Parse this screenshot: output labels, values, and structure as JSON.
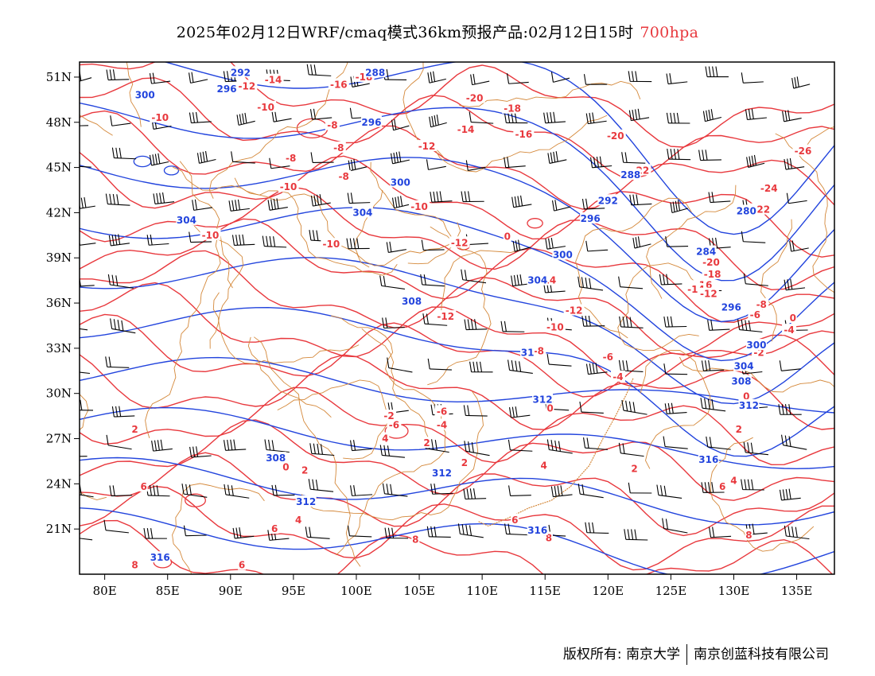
{
  "header": {
    "title": "2025年02月12日WRF/cmaq模式36km预报产品:02月12日15时",
    "level": "700hpa"
  },
  "map": {
    "lon_range": [
      78,
      138
    ],
    "lat_range": [
      18,
      52
    ],
    "lon_ticks": [
      "80E",
      "85E",
      "90E",
      "95E",
      "100E",
      "105E",
      "110E",
      "115E",
      "120E",
      "125E",
      "130E",
      "135E"
    ],
    "lat_ticks": [
      "21N",
      "24N",
      "27N",
      "30N",
      "33N",
      "36N",
      "39N",
      "42N",
      "45N",
      "48N",
      "51N"
    ],
    "colors": {
      "height": "#2244dd",
      "temperature": "#e8383d",
      "border": "#d4883a",
      "wind": "#000000"
    },
    "height_labels": [
      {
        "text": "292",
        "lon": 90.8,
        "lat": 51.3
      },
      {
        "text": "288",
        "lon": 101.5,
        "lat": 51.3
      },
      {
        "text": "300",
        "lon": 83.2,
        "lat": 49.8
      },
      {
        "text": "296",
        "lon": 89.7,
        "lat": 50.2
      },
      {
        "text": "296",
        "lon": 101.2,
        "lat": 48.0
      },
      {
        "text": "300",
        "lon": 103.5,
        "lat": 44.0
      },
      {
        "text": "304",
        "lon": 86.5,
        "lat": 41.5
      },
      {
        "text": "304",
        "lon": 100.5,
        "lat": 42.0
      },
      {
        "text": "308",
        "lon": 104.4,
        "lat": 36.1
      },
      {
        "text": "300",
        "lon": 116.4,
        "lat": 39.2
      },
      {
        "text": "304",
        "lon": 114.4,
        "lat": 37.5
      },
      {
        "text": "296",
        "lon": 118.6,
        "lat": 41.6
      },
      {
        "text": "292",
        "lon": 120.0,
        "lat": 42.8
      },
      {
        "text": "288",
        "lon": 121.8,
        "lat": 44.5
      },
      {
        "text": "280",
        "lon": 131.0,
        "lat": 42.1
      },
      {
        "text": "284",
        "lon": 127.8,
        "lat": 39.4
      },
      {
        "text": "296",
        "lon": 129.8,
        "lat": 35.7
      },
      {
        "text": "300",
        "lon": 131.8,
        "lat": 33.2
      },
      {
        "text": "304",
        "lon": 130.8,
        "lat": 31.8
      },
      {
        "text": "308",
        "lon": 130.6,
        "lat": 30.8
      },
      {
        "text": "312",
        "lon": 131.2,
        "lat": 29.2
      },
      {
        "text": "312",
        "lon": 114.8,
        "lat": 29.6
      },
      {
        "text": "316",
        "lon": 128.0,
        "lat": 25.6
      },
      {
        "text": "316",
        "lon": 114.4,
        "lat": 20.9
      },
      {
        "text": "308",
        "lon": 93.6,
        "lat": 25.7
      },
      {
        "text": "312",
        "lon": 96.0,
        "lat": 22.8
      },
      {
        "text": "312",
        "lon": 106.8,
        "lat": 24.7
      },
      {
        "text": "316",
        "lon": 84.4,
        "lat": 19.1
      },
      {
        "text": "31",
        "lon": 113.6,
        "lat": 32.7
      }
    ],
    "temp_labels": [
      {
        "text": "-12",
        "lon": 91.3,
        "lat": 50.4
      },
      {
        "text": "-14",
        "lon": 93.4,
        "lat": 50.8
      },
      {
        "text": "-16",
        "lon": 98.6,
        "lat": 50.5
      },
      {
        "text": "-18",
        "lon": 100.6,
        "lat": 51.0
      },
      {
        "text": "-10",
        "lon": 92.8,
        "lat": 49.0
      },
      {
        "text": "-10",
        "lon": 84.4,
        "lat": 48.3
      },
      {
        "text": "-20",
        "lon": 109.4,
        "lat": 49.6
      },
      {
        "text": "-18",
        "lon": 112.4,
        "lat": 48.9
      },
      {
        "text": "-14",
        "lon": 108.7,
        "lat": 47.5
      },
      {
        "text": "-16",
        "lon": 113.3,
        "lat": 47.2
      },
      {
        "text": "-8",
        "lon": 98.1,
        "lat": 47.8
      },
      {
        "text": "-8",
        "lon": 98.6,
        "lat": 46.3
      },
      {
        "text": "-12",
        "lon": 105.6,
        "lat": 46.4
      },
      {
        "text": "-20",
        "lon": 120.6,
        "lat": 47.1
      },
      {
        "text": "-22",
        "lon": 122.6,
        "lat": 44.8
      },
      {
        "text": "-26",
        "lon": 135.5,
        "lat": 46.1
      },
      {
        "text": "-8",
        "lon": 94.8,
        "lat": 45.6
      },
      {
        "text": "-8",
        "lon": 99.0,
        "lat": 44.4
      },
      {
        "text": "-10",
        "lon": 94.6,
        "lat": 43.7
      },
      {
        "text": "-10",
        "lon": 105.0,
        "lat": 42.4
      },
      {
        "text": "-10",
        "lon": 88.4,
        "lat": 40.5
      },
      {
        "text": "-10",
        "lon": 98.0,
        "lat": 39.9
      },
      {
        "text": "-12",
        "lon": 108.2,
        "lat": 40.0
      },
      {
        "text": "-24",
        "lon": 132.8,
        "lat": 43.6
      },
      {
        "text": "-22",
        "lon": 132.2,
        "lat": 42.2
      },
      {
        "text": "-20",
        "lon": 128.2,
        "lat": 38.7
      },
      {
        "text": "-18",
        "lon": 128.3,
        "lat": 37.9
      },
      {
        "text": "-16",
        "lon": 127.6,
        "lat": 37.2
      },
      {
        "text": "-14",
        "lon": 127.0,
        "lat": 36.9
      },
      {
        "text": "-12",
        "lon": 128.0,
        "lat": 36.6
      },
      {
        "text": "-8",
        "lon": 132.2,
        "lat": 35.9
      },
      {
        "text": "-6",
        "lon": 131.7,
        "lat": 35.2
      },
      {
        "text": "-14",
        "lon": 115.2,
        "lat": 37.5
      },
      {
        "text": "-12",
        "lon": 117.3,
        "lat": 35.5
      },
      {
        "text": "-12",
        "lon": 107.1,
        "lat": 35.1
      },
      {
        "text": "-10",
        "lon": 115.8,
        "lat": 34.4
      },
      {
        "text": "-8",
        "lon": 114.5,
        "lat": 32.8
      },
      {
        "text": "-6",
        "lon": 120.0,
        "lat": 32.4
      },
      {
        "text": "-4",
        "lon": 120.8,
        "lat": 31.1
      },
      {
        "text": "-4",
        "lon": 134.4,
        "lat": 34.2
      },
      {
        "text": "-2",
        "lon": 132.0,
        "lat": 32.7
      },
      {
        "text": "0",
        "lon": 134.7,
        "lat": 35.0
      },
      {
        "text": "0",
        "lon": 131.0,
        "lat": 29.8
      },
      {
        "text": "-6",
        "lon": 106.8,
        "lat": 28.8
      },
      {
        "text": "-4",
        "lon": 106.8,
        "lat": 27.9
      },
      {
        "text": "-6",
        "lon": 103.0,
        "lat": 27.9
      },
      {
        "text": "-2",
        "lon": 102.6,
        "lat": 28.5
      },
      {
        "text": "0",
        "lon": 115.4,
        "lat": 29.0
      },
      {
        "text": "2",
        "lon": 82.4,
        "lat": 27.6
      },
      {
        "text": "2",
        "lon": 105.6,
        "lat": 26.7
      },
      {
        "text": "2",
        "lon": 130.4,
        "lat": 27.6
      },
      {
        "text": "2",
        "lon": 108.6,
        "lat": 25.4
      },
      {
        "text": "0",
        "lon": 94.4,
        "lat": 25.1
      },
      {
        "text": "2",
        "lon": 95.9,
        "lat": 24.9
      },
      {
        "text": "4",
        "lon": 95.4,
        "lat": 21.6
      },
      {
        "text": "4",
        "lon": 114.9,
        "lat": 25.2
      },
      {
        "text": "2",
        "lon": 122.1,
        "lat": 25.0
      },
      {
        "text": "6",
        "lon": 83.1,
        "lat": 23.8
      },
      {
        "text": "6",
        "lon": 129.1,
        "lat": 23.8
      },
      {
        "text": "4",
        "lon": 130.0,
        "lat": 24.2
      },
      {
        "text": "6",
        "lon": 93.5,
        "lat": 21.0
      },
      {
        "text": "6",
        "lon": 112.6,
        "lat": 21.6
      },
      {
        "text": "8",
        "lon": 104.7,
        "lat": 20.3
      },
      {
        "text": "8",
        "lon": 115.3,
        "lat": 20.4
      },
      {
        "text": "8",
        "lon": 131.2,
        "lat": 20.6
      },
      {
        "text": "6",
        "lon": 90.9,
        "lat": 18.6
      },
      {
        "text": "8",
        "lon": 82.4,
        "lat": 18.6
      },
      {
        "text": "0",
        "lon": 112.0,
        "lat": 40.4
      },
      {
        "text": "4",
        "lon": 102.3,
        "lat": 27.0
      }
    ]
  },
  "footer": {
    "left": "版权所有: 南京大学",
    "right": "南京创蓝科技有限公司"
  }
}
